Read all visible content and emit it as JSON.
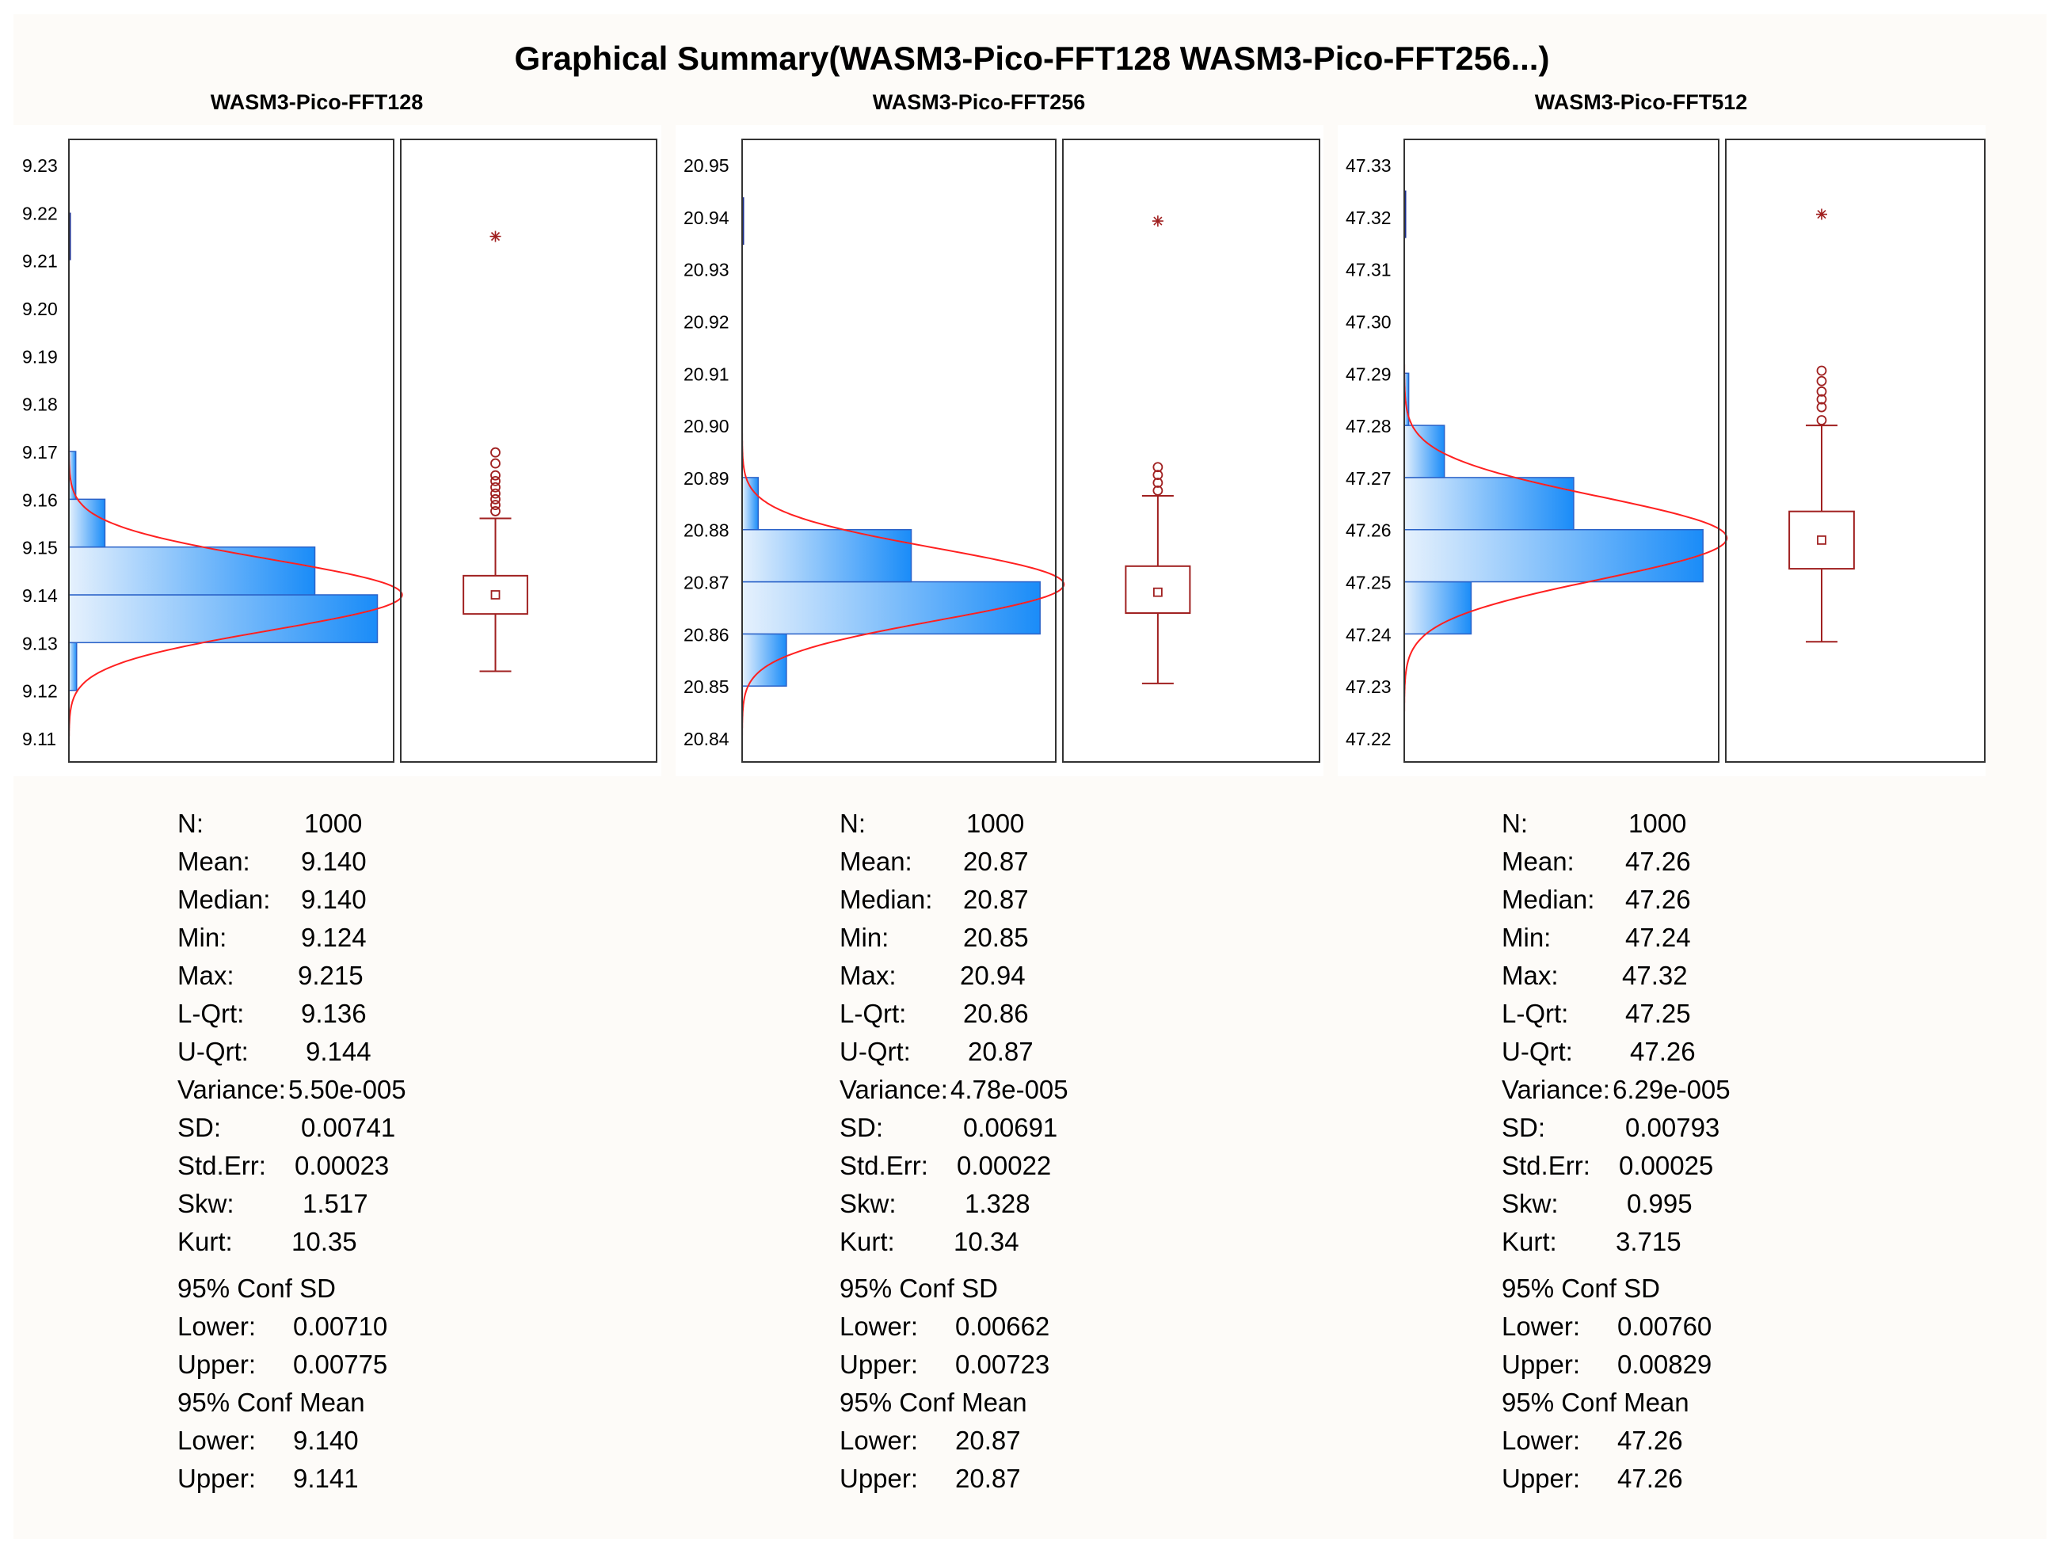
{
  "title": "Graphical Summary(WASM3-Pico-FFT128 WASM3-Pico-FFT256...)",
  "colors": {
    "hist_border": "#2a62c8",
    "hist_light": "#e6f1fd",
    "hist_dark": "#1a8cf8",
    "normal_curve": "#ff2020",
    "box": "#a02020",
    "axis": "#333333"
  },
  "chart_data": [
    {
      "type": "histogram+boxplot",
      "title": "WASM3-Pico-FFT128",
      "ylim": [
        9.11,
        9.23
      ],
      "yticks": [
        "9.23",
        "9.22",
        "9.21",
        "9.20",
        "9.19",
        "9.18",
        "9.17",
        "9.16",
        "9.15",
        "9.14",
        "9.13",
        "9.12",
        "9.11"
      ],
      "bins": [
        {
          "from": 9.12,
          "to": 9.13,
          "count": 9
        },
        {
          "from": 9.13,
          "to": 9.14,
          "count": 360
        },
        {
          "from": 9.14,
          "to": 9.15,
          "count": 287
        },
        {
          "from": 9.15,
          "to": 9.16,
          "count": 42
        },
        {
          "from": 9.16,
          "to": 9.17,
          "count": 8
        }
      ],
      "bin_max": 360,
      "normal": {
        "mean": 9.14,
        "sd": 0.00741
      },
      "box": {
        "min": 9.124,
        "q1": 9.136,
        "median": 9.14,
        "q3": 9.144,
        "whisker_high": 9.156,
        "mean": 9.14
      },
      "outliers": [
        9.1575,
        9.1588,
        9.16,
        9.1612,
        9.1625,
        9.1638,
        9.165,
        9.1675,
        9.1698
      ],
      "extremes": [
        9.215
      ],
      "stats": {
        "n": {
          "label": "N:",
          "value": "1000"
        },
        "mean": {
          "label": "Mean:",
          "value": "9.140"
        },
        "median": {
          "label": "Median:",
          "value": "9.140"
        },
        "min": {
          "label": "Min:",
          "value": "9.124"
        },
        "max": {
          "label": "Max:",
          "value": "9.215"
        },
        "lqrt": {
          "label": "L-Qrt:",
          "value": "9.136"
        },
        "uqrt": {
          "label": "U-Qrt:",
          "value": "9.144"
        },
        "variance": {
          "label": "Variance:",
          "value": "5.50e-005"
        },
        "sd": {
          "label": "SD:",
          "value": "0.00741"
        },
        "stderr": {
          "label": "Std.Err:",
          "value": "0.00023"
        },
        "skw": {
          "label": "Skw:",
          "value": "1.517"
        },
        "kurt": {
          "label": "Kurt:",
          "value": "10.35"
        },
        "conf_sd_title": "95% Conf SD",
        "conf_sd_lower": {
          "label": "Lower:",
          "value": "0.00710"
        },
        "conf_sd_upper": {
          "label": "Upper:",
          "value": "0.00775"
        },
        "conf_mean_title": "95% Conf Mean",
        "conf_mean_lower": {
          "label": "Lower:",
          "value": "9.140"
        },
        "conf_mean_upper": {
          "label": "Upper:",
          "value": "9.141"
        }
      }
    },
    {
      "type": "histogram+boxplot",
      "title": "WASM3-Pico-FFT256",
      "ylim": [
        20.84,
        20.955
      ],
      "yticks": [
        "20.95",
        "20.94",
        "20.93",
        "20.92",
        "20.91",
        "20.90",
        "20.89",
        "20.88",
        "20.87",
        "20.86",
        "20.85",
        "20.84"
      ],
      "bins": [
        {
          "from": 20.85,
          "to": 20.86,
          "count": 55
        },
        {
          "from": 20.86,
          "to": 20.87,
          "count": 370
        },
        {
          "from": 20.87,
          "to": 20.88,
          "count": 210
        },
        {
          "from": 20.88,
          "to": 20.89,
          "count": 20
        }
      ],
      "bin_max": 370,
      "normal": {
        "mean": 20.8695,
        "sd": 0.00691
      },
      "box": {
        "min": 20.8505,
        "q1": 20.864,
        "median": 20.868,
        "q3": 20.873,
        "whisker_high": 20.8865,
        "mean": 20.868
      },
      "outliers": [
        20.8875,
        20.889,
        20.8905,
        20.892
      ],
      "extremes": [
        20.9392
      ],
      "stats": {
        "n": {
          "label": "N:",
          "value": "1000"
        },
        "mean": {
          "label": "Mean:",
          "value": "20.87"
        },
        "median": {
          "label": "Median:",
          "value": "20.87"
        },
        "min": {
          "label": "Min:",
          "value": "20.85"
        },
        "max": {
          "label": "Max:",
          "value": "20.94"
        },
        "lqrt": {
          "label": "L-Qrt:",
          "value": "20.86"
        },
        "uqrt": {
          "label": "U-Qrt:",
          "value": "20.87"
        },
        "variance": {
          "label": "Variance:",
          "value": "4.78e-005"
        },
        "sd": {
          "label": "SD:",
          "value": "0.00691"
        },
        "stderr": {
          "label": "Std.Err:",
          "value": "0.00022"
        },
        "skw": {
          "label": "Skw:",
          "value": "1.328"
        },
        "kurt": {
          "label": "Kurt:",
          "value": "10.34"
        },
        "conf_sd_title": "95% Conf SD",
        "conf_sd_lower": {
          "label": "Lower:",
          "value": "0.00662"
        },
        "conf_sd_upper": {
          "label": "Upper:",
          "value": "0.00723"
        },
        "conf_mean_title": "95% Conf Mean",
        "conf_mean_lower": {
          "label": "Lower:",
          "value": "20.87"
        },
        "conf_mean_upper": {
          "label": "Upper:",
          "value": "20.87"
        }
      }
    },
    {
      "type": "histogram+boxplot",
      "title": "WASM3-Pico-FFT512",
      "ylim": [
        47.22,
        47.335
      ],
      "yticks": [
        "47.33",
        "47.32",
        "47.31",
        "47.30",
        "47.29",
        "47.28",
        "47.27",
        "47.26",
        "47.25",
        "47.24",
        "47.23",
        "47.22"
      ],
      "bins": [
        {
          "from": 47.24,
          "to": 47.25,
          "count": 75
        },
        {
          "from": 47.25,
          "to": 47.26,
          "count": 335
        },
        {
          "from": 47.26,
          "to": 47.27,
          "count": 190
        },
        {
          "from": 47.27,
          "to": 47.28,
          "count": 45
        },
        {
          "from": 47.28,
          "to": 47.29,
          "count": 5
        }
      ],
      "bin_max": 335,
      "normal": {
        "mean": 47.2584,
        "sd": 0.00793
      },
      "box": {
        "min": 47.2385,
        "q1": 47.2525,
        "median": 47.258,
        "q3": 47.2635,
        "whisker_high": 47.28,
        "mean": 47.258
      },
      "outliers": [
        47.281,
        47.2835,
        47.285,
        47.2865,
        47.2885,
        47.2905
      ],
      "extremes": [
        47.3205
      ],
      "stats": {
        "n": {
          "label": "N:",
          "value": "1000"
        },
        "mean": {
          "label": "Mean:",
          "value": "47.26"
        },
        "median": {
          "label": "Median:",
          "value": "47.26"
        },
        "min": {
          "label": "Min:",
          "value": "47.24"
        },
        "max": {
          "label": "Max:",
          "value": "47.32"
        },
        "lqrt": {
          "label": "L-Qrt:",
          "value": "47.25"
        },
        "uqrt": {
          "label": "U-Qrt:",
          "value": "47.26"
        },
        "variance": {
          "label": "Variance:",
          "value": "6.29e-005"
        },
        "sd": {
          "label": "SD:",
          "value": "0.00793"
        },
        "stderr": {
          "label": "Std.Err:",
          "value": "0.00025"
        },
        "skw": {
          "label": "Skw:",
          "value": "0.995"
        },
        "kurt": {
          "label": "Kurt:",
          "value": "3.715"
        },
        "conf_sd_title": "95% Conf SD",
        "conf_sd_lower": {
          "label": "Lower:",
          "value": "0.00760"
        },
        "conf_sd_upper": {
          "label": "Upper:",
          "value": "0.00829"
        },
        "conf_mean_title": "95% Conf Mean",
        "conf_mean_lower": {
          "label": "Lower:",
          "value": "47.26"
        },
        "conf_mean_upper": {
          "label": "Upper:",
          "value": "47.26"
        }
      }
    }
  ]
}
